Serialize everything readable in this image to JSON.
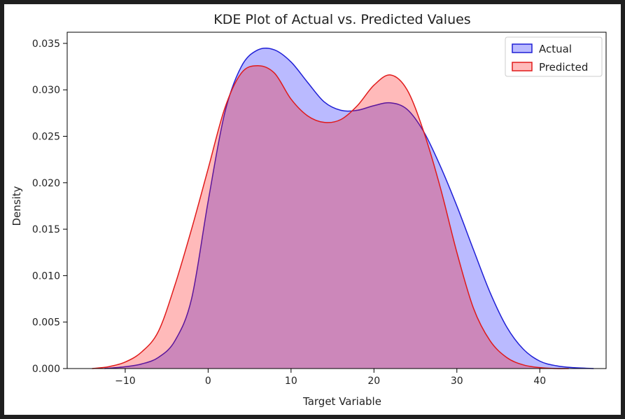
{
  "chart_data": {
    "type": "area",
    "title": "KDE Plot of Actual vs. Predicted Values",
    "xlabel": "Target Variable",
    "ylabel": "Density",
    "xlim": [
      -17,
      48
    ],
    "ylim": [
      0,
      0.0362
    ],
    "xticks": [
      -10,
      0,
      10,
      20,
      30,
      40
    ],
    "xtick_labels": [
      "−10",
      "0",
      "10",
      "20",
      "30",
      "40"
    ],
    "yticks": [
      0,
      0.005,
      0.01,
      0.015,
      0.02,
      0.025,
      0.03,
      0.035
    ],
    "ytick_labels": [
      "0.000",
      "0.005",
      "0.010",
      "0.015",
      "0.020",
      "0.025",
      "0.030",
      "0.035"
    ],
    "grid": false,
    "legend_position": "top-right",
    "series": [
      {
        "name": "Actual",
        "color": "#1f1fd6",
        "fill": "#0000ff",
        "fill_opacity": 0.27,
        "x": [
          -12.5,
          -10,
          -8,
          -6,
          -4,
          -2,
          0,
          2,
          4,
          6,
          8,
          10,
          12,
          14,
          16,
          18,
          20,
          22,
          24,
          26,
          28,
          30,
          32,
          34,
          36,
          38,
          40,
          42,
          44,
          46.5
        ],
        "y": [
          0.0,
          0.0002,
          0.0005,
          0.0012,
          0.003,
          0.0075,
          0.018,
          0.0275,
          0.0325,
          0.0343,
          0.0343,
          0.033,
          0.0308,
          0.0287,
          0.0278,
          0.0278,
          0.0283,
          0.0286,
          0.0279,
          0.0255,
          0.0218,
          0.0175,
          0.0128,
          0.0082,
          0.0045,
          0.0021,
          0.0008,
          0.0003,
          0.0001,
          0.0
        ]
      },
      {
        "name": "Predicted",
        "color": "#e01a1a",
        "fill": "#ff0000",
        "fill_opacity": 0.27,
        "x": [
          -14,
          -12,
          -10,
          -8,
          -6,
          -4,
          -2,
          0,
          2,
          4,
          6,
          8,
          10,
          12,
          14,
          16,
          18,
          20,
          22,
          24,
          26,
          28,
          30,
          32,
          34,
          36,
          38,
          40,
          42,
          43.5
        ],
        "y": [
          0.0,
          0.0002,
          0.0007,
          0.0018,
          0.004,
          0.009,
          0.015,
          0.0215,
          0.028,
          0.0318,
          0.0326,
          0.0318,
          0.029,
          0.0272,
          0.0265,
          0.0268,
          0.0283,
          0.0305,
          0.0316,
          0.03,
          0.0255,
          0.0195,
          0.0125,
          0.0065,
          0.003,
          0.0012,
          0.0004,
          0.0001,
          0.0,
          0.0
        ]
      }
    ]
  }
}
